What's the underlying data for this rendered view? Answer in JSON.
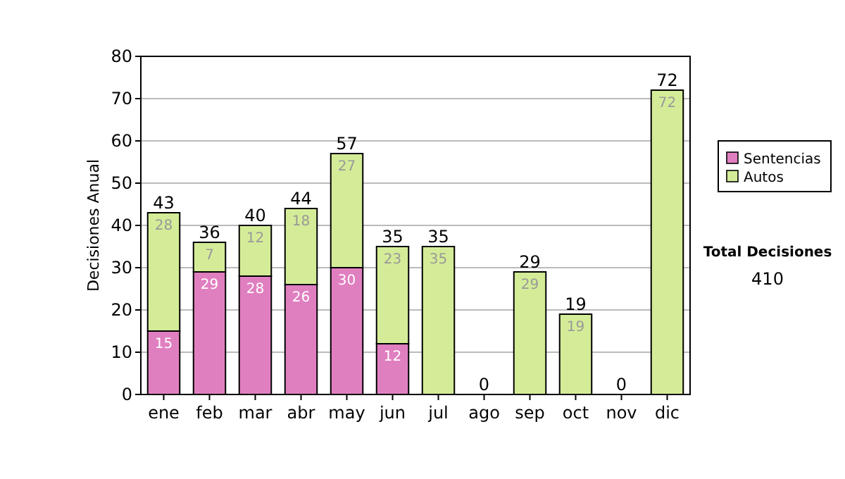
{
  "chart_data": {
    "type": "bar",
    "stacked": true,
    "ylabel": "Decisiones Anual",
    "categories": [
      "ene",
      "feb",
      "mar",
      "abr",
      "may",
      "jun",
      "jul",
      "ago",
      "sep",
      "oct",
      "nov",
      "dic"
    ],
    "series": [
      {
        "name": "Sentencias",
        "color": "#e07fc0",
        "values": [
          15,
          29,
          28,
          26,
          30,
          12,
          0,
          0,
          0,
          0,
          0,
          0
        ],
        "value_labels": [
          "15",
          "29",
          "28",
          "26",
          "30",
          "12",
          null,
          null,
          null,
          null,
          null,
          null
        ]
      },
      {
        "name": "Autos",
        "color": "#d4ec98",
        "values": [
          28,
          7,
          12,
          18,
          27,
          23,
          35,
          0,
          29,
          19,
          0,
          72
        ],
        "value_labels": [
          "28",
          "7",
          "12",
          "18",
          "27",
          "23",
          "35",
          null,
          "29",
          "19",
          null,
          "72"
        ]
      }
    ],
    "totals": [
      "43",
      "36",
      "40",
      "44",
      "57",
      "35",
      "35",
      "0",
      "29",
      "19",
      "0",
      "72"
    ],
    "ylim": [
      0,
      80
    ],
    "yticks": [
      0,
      10,
      20,
      30,
      40,
      50,
      60,
      70,
      80
    ],
    "grid": "y",
    "legend": "right",
    "annotations": [
      "Total Decisiones",
      "410"
    ]
  }
}
